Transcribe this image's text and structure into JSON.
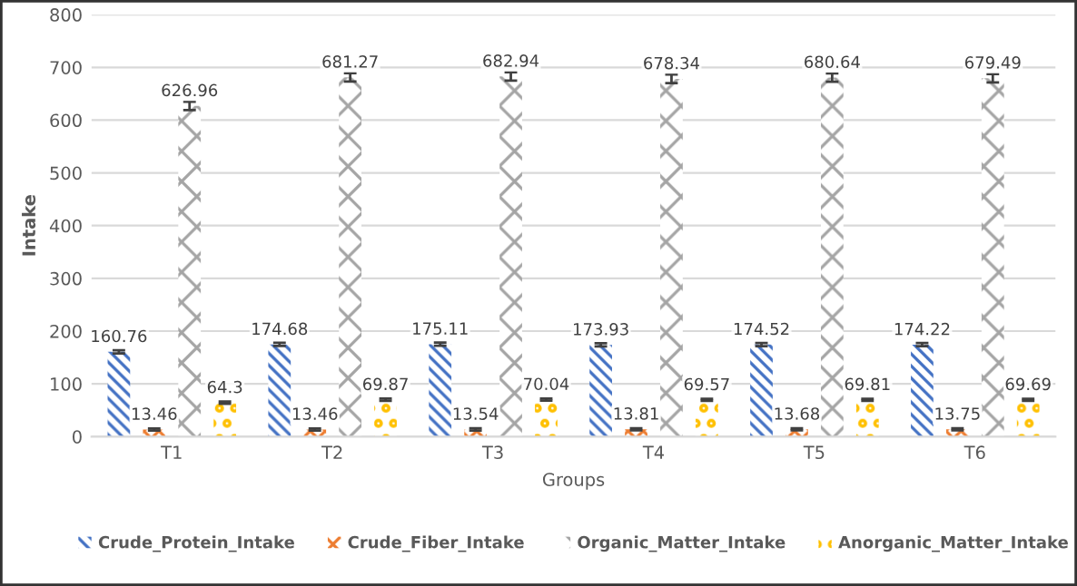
{
  "chart_data": {
    "type": "bar",
    "xlabel": "Groups",
    "ylabel": "Intake",
    "categories": [
      "T1",
      "T2",
      "T3",
      "T4",
      "T5",
      "T6"
    ],
    "series": [
      {
        "name": "Crude_Protein_Intake",
        "color": "#4472c4",
        "values": [
          160.76,
          174.68,
          175.11,
          173.93,
          174.52,
          174.22
        ],
        "errors": [
          3,
          3,
          3,
          3,
          3,
          3
        ]
      },
      {
        "name": "Crude_Fiber_Intake",
        "color": "#ed7d31",
        "values": [
          13.46,
          13.46,
          13.54,
          13.81,
          13.68,
          13.75
        ],
        "errors": [
          2,
          2,
          2,
          2,
          2,
          2
        ]
      },
      {
        "name": "Organic_Matter_Intake",
        "color": "#a5a5a5",
        "values": [
          626.96,
          681.27,
          682.94,
          678.34,
          680.64,
          679.49
        ],
        "errors": [
          8,
          8,
          8,
          8,
          8,
          8
        ]
      },
      {
        "name": "Anorganic_Matter_Intake",
        "color": "#ffc000",
        "values": [
          64.3,
          69.87,
          70.04,
          69.57,
          69.81,
          69.69
        ],
        "errors": [
          2,
          2,
          2,
          2,
          2,
          2
        ]
      }
    ],
    "ylim": [
      0,
      800
    ],
    "yticks": [
      0,
      100,
      200,
      300,
      400,
      500,
      600,
      700,
      800
    ],
    "grid": "y",
    "legend": "bottom",
    "data_labels": true
  }
}
